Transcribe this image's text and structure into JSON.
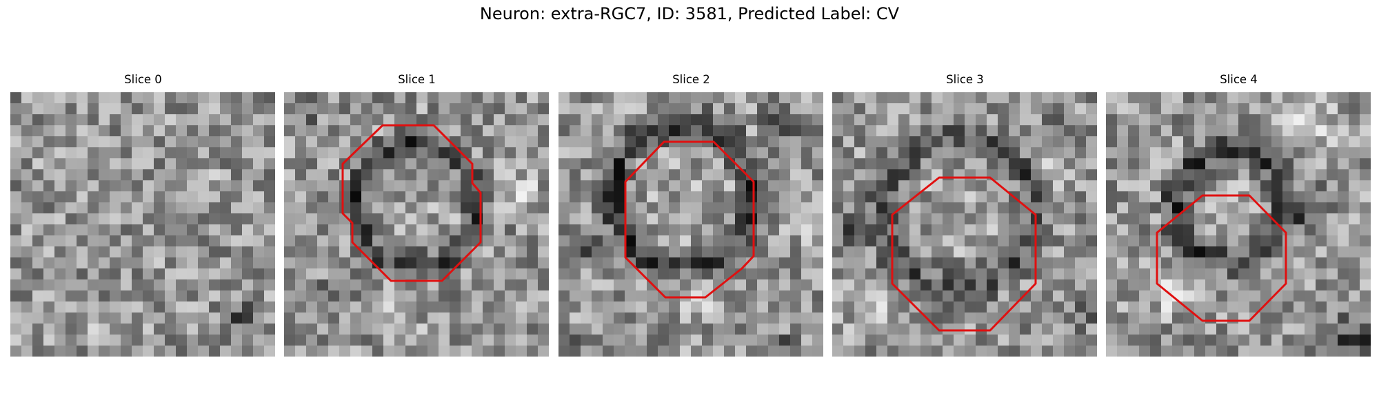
{
  "figure": {
    "title": "Neuron: extra-RGC7, ID: 3581, Predicted Label: CV",
    "outline_color": "#e01010"
  },
  "panels": [
    {
      "title": "Slice 0",
      "has_outline": false,
      "seed": 11
    },
    {
      "title": "Slice 1",
      "has_outline": true,
      "seed": 23
    },
    {
      "title": "Slice 2",
      "has_outline": true,
      "seed": 37
    },
    {
      "title": "Slice 3",
      "has_outline": true,
      "seed": 41
    },
    {
      "title": "Slice 4",
      "has_outline": true,
      "seed": 53
    }
  ]
}
